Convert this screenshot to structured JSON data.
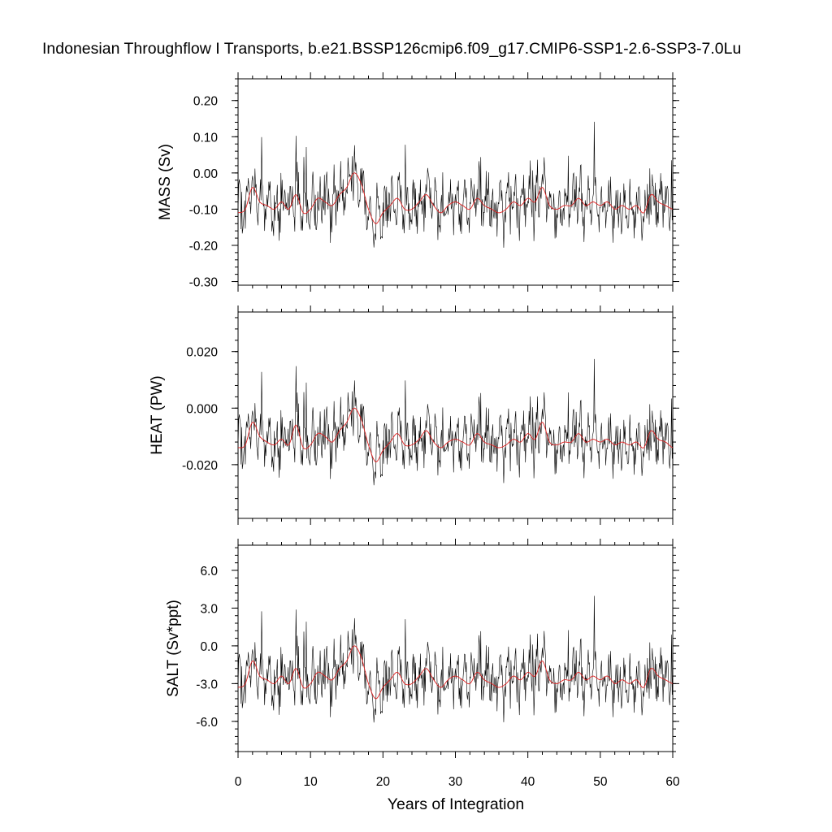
{
  "chart_data": {
    "type": "line",
    "title": "Indonesian Throughflow I Transports, b.e21.BSSP126cmip6.f09_g17.CMIP6-SSP1-2.6-SSP3-7.0Lu",
    "xlabel": "Years of Integration",
    "xlim": [
      0,
      60
    ],
    "x_ticks": [
      0,
      10,
      20,
      30,
      40,
      50,
      60
    ],
    "grid": false,
    "line_colors": {
      "monthly": "#000000",
      "smoothed": "#e02020"
    },
    "panels": [
      {
        "ylabel": "MASS (Sv)",
        "ylim": [
          -0.31,
          0.26
        ],
        "y_ticks": [
          0.2,
          0.1,
          0.0,
          -0.1,
          -0.2,
          -0.3
        ],
        "y_tick_labels": [
          "0.20",
          "0.10",
          "0.00",
          "-0.10",
          "-0.20",
          "-0.30"
        ],
        "series": [
          {
            "type": "line",
            "x": [
              0,
              1,
              2,
              3,
              4,
              5,
              6,
              7,
              8,
              9,
              10,
              11,
              12,
              13,
              14,
              15,
              16,
              17,
              18,
              19,
              20,
              21,
              22,
              23,
              24,
              25,
              26,
              27,
              28,
              29,
              30,
              31,
              32,
              33,
              34,
              35,
              36,
              37,
              38,
              39,
              40,
              41,
              42,
              43,
              44,
              45,
              46,
              47,
              48,
              49,
              50,
              51,
              52,
              53,
              54,
              55,
              56,
              57,
              58,
              59,
              60
            ],
            "values": [
              -0.11,
              -0.1,
              -0.04,
              -0.08,
              -0.09,
              -0.1,
              -0.08,
              -0.1,
              -0.06,
              -0.11,
              -0.1,
              -0.07,
              -0.08,
              -0.09,
              -0.06,
              -0.04,
              0.0,
              -0.03,
              -0.1,
              -0.14,
              -0.11,
              -0.09,
              -0.07,
              -0.1,
              -0.1,
              -0.08,
              -0.06,
              -0.09,
              -0.11,
              -0.09,
              -0.08,
              -0.09,
              -0.1,
              -0.07,
              -0.09,
              -0.1,
              -0.11,
              -0.1,
              -0.08,
              -0.09,
              -0.07,
              -0.08,
              -0.04,
              -0.09,
              -0.1,
              -0.09,
              -0.09,
              -0.07,
              -0.09,
              -0.08,
              -0.09,
              -0.08,
              -0.1,
              -0.09,
              -0.1,
              -0.09,
              -0.11,
              -0.06,
              -0.08,
              -0.09,
              -0.1
            ]
          }
        ]
      },
      {
        "ylabel": "HEAT (PW)",
        "ylim": [
          -0.039,
          0.034
        ],
        "y_ticks": [
          0.02,
          0.0,
          -0.02
        ],
        "y_tick_labels": [
          "0.020",
          "0.000",
          "-0.020"
        ],
        "series": [
          {
            "type": "line",
            "x": [
              0,
              1,
              2,
              3,
              4,
              5,
              6,
              7,
              8,
              9,
              10,
              11,
              12,
              13,
              14,
              15,
              16,
              17,
              18,
              19,
              20,
              21,
              22,
              23,
              24,
              25,
              26,
              27,
              28,
              29,
              30,
              31,
              32,
              33,
              34,
              35,
              36,
              37,
              38,
              39,
              40,
              41,
              42,
              43,
              44,
              45,
              46,
              47,
              48,
              49,
              50,
              51,
              52,
              53,
              54,
              55,
              56,
              57,
              58,
              59,
              60
            ],
            "values": [
              -0.014,
              -0.013,
              -0.005,
              -0.01,
              -0.012,
              -0.013,
              -0.011,
              -0.013,
              -0.006,
              -0.014,
              -0.013,
              -0.009,
              -0.01,
              -0.012,
              -0.008,
              -0.005,
              0.0,
              -0.004,
              -0.013,
              -0.019,
              -0.015,
              -0.012,
              -0.009,
              -0.013,
              -0.013,
              -0.011,
              -0.008,
              -0.012,
              -0.014,
              -0.012,
              -0.011,
              -0.012,
              -0.013,
              -0.009,
              -0.012,
              -0.013,
              -0.014,
              -0.013,
              -0.011,
              -0.012,
              -0.009,
              -0.011,
              -0.005,
              -0.012,
              -0.013,
              -0.012,
              -0.012,
              -0.009,
              -0.012,
              -0.011,
              -0.012,
              -0.011,
              -0.013,
              -0.012,
              -0.013,
              -0.012,
              -0.014,
              -0.008,
              -0.011,
              -0.012,
              -0.014
            ]
          }
        ]
      },
      {
        "ylabel": "SALT (Sv*ppt)",
        "ylim": [
          -8.4,
          8.0
        ],
        "y_ticks": [
          6.0,
          3.0,
          0.0,
          -3.0,
          -6.0
        ],
        "y_tick_labels": [
          "6.0",
          "3.0",
          "0.0",
          "-3.0",
          "-6.0"
        ],
        "series": [
          {
            "type": "line",
            "x": [
              0,
              1,
              2,
              3,
              4,
              5,
              6,
              7,
              8,
              9,
              10,
              11,
              12,
              13,
              14,
              15,
              16,
              17,
              18,
              19,
              20,
              21,
              22,
              23,
              24,
              25,
              26,
              27,
              28,
              29,
              30,
              31,
              32,
              33,
              34,
              35,
              36,
              37,
              38,
              39,
              40,
              41,
              42,
              43,
              44,
              45,
              46,
              47,
              48,
              49,
              50,
              51,
              52,
              53,
              54,
              55,
              56,
              57,
              58,
              59,
              60
            ],
            "values": [
              -3.3,
              -3.0,
              -1.2,
              -2.4,
              -2.7,
              -3.0,
              -2.4,
              -3.0,
              -1.8,
              -3.3,
              -3.0,
              -2.1,
              -2.4,
              -2.7,
              -1.8,
              -1.2,
              0.0,
              -0.9,
              -3.0,
              -4.2,
              -3.3,
              -2.7,
              -2.1,
              -3.0,
              -3.0,
              -2.4,
              -1.8,
              -2.7,
              -3.3,
              -2.7,
              -2.4,
              -2.7,
              -3.0,
              -2.1,
              -2.7,
              -3.0,
              -3.3,
              -3.0,
              -2.4,
              -2.7,
              -2.1,
              -2.4,
              -1.2,
              -2.7,
              -3.0,
              -2.7,
              -2.7,
              -2.1,
              -2.7,
              -2.4,
              -2.7,
              -2.4,
              -3.0,
              -2.7,
              -3.0,
              -2.7,
              -3.3,
              -1.8,
              -2.4,
              -2.7,
              -3.0
            ]
          }
        ]
      }
    ]
  }
}
